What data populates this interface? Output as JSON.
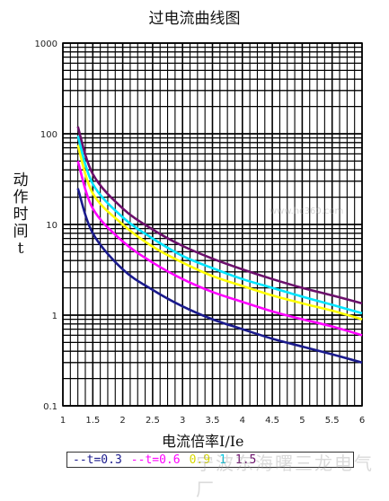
{
  "chart_data": {
    "type": "line",
    "title": "过电流曲线图",
    "xlabel": "电流倍率I/Ie",
    "ylabel": "动作时间t",
    "xlim": [
      1,
      6
    ],
    "ylim": [
      0.1,
      1000
    ],
    "yscale": "log",
    "grid": true,
    "legend": "bottom",
    "x_ticks": [
      "1",
      "1.5",
      "2",
      "2.5",
      "3",
      "3.5",
      "4",
      "4.5",
      "5",
      "5.5",
      "6"
    ],
    "y_ticks": [
      "1000",
      "100",
      "10",
      "1",
      "0.1"
    ],
    "series": [
      {
        "name": "t=0.3",
        "color": "#1a1a8c",
        "x": [
          1.25,
          1.5,
          2,
          2.5,
          3,
          3.5,
          4,
          4.5,
          5,
          5.5,
          6
        ],
        "y": [
          25,
          8,
          3.2,
          1.9,
          1.25,
          0.9,
          0.7,
          0.55,
          0.45,
          0.37,
          0.3
        ]
      },
      {
        "name": "t=0.6",
        "color": "#ff00ff",
        "x": [
          1.25,
          1.5,
          2,
          2.5,
          3,
          3.5,
          4,
          4.5,
          5,
          5.5,
          6
        ],
        "y": [
          50,
          15,
          6.5,
          3.8,
          2.5,
          1.8,
          1.4,
          1.1,
          0.9,
          0.75,
          0.6
        ]
      },
      {
        "name": "0.9",
        "color": "#ffff00",
        "x": [
          1.25,
          1.5,
          2,
          2.5,
          3,
          3.5,
          4,
          4.5,
          5,
          5.5,
          6
        ],
        "y": [
          75,
          22,
          10,
          5.7,
          3.8,
          2.7,
          2.1,
          1.65,
          1.35,
          1.12,
          0.9
        ]
      },
      {
        "name": "1",
        "color": "#00e5ff",
        "x": [
          1.25,
          1.5,
          2,
          2.5,
          3,
          3.5,
          4,
          4.5,
          5,
          5.5,
          6
        ],
        "y": [
          95,
          28,
          12,
          7,
          4.5,
          3.3,
          2.5,
          2.0,
          1.6,
          1.3,
          1.05
        ]
      },
      {
        "name": "1.5",
        "color": "#6b0f6b",
        "x": [
          1.25,
          1.5,
          2,
          2.5,
          3,
          3.5,
          4,
          4.5,
          5,
          5.5,
          6
        ],
        "y": [
          120,
          36,
          15,
          8.8,
          5.8,
          4.2,
          3.2,
          2.5,
          2.0,
          1.65,
          1.35
        ]
      }
    ]
  },
  "legend": {
    "items": [
      {
        "label": "--t=0.3",
        "color": "#1a1a8c"
      },
      {
        "label": "--t=0.6",
        "color": "#ff00ff"
      },
      {
        "label": "0.9",
        "color": "#d8d800"
      },
      {
        "label": "1",
        "color": "#00c8e0"
      },
      {
        "label": "1.5",
        "color": "#6b0f6b"
      }
    ]
  },
  "watermark": {
    "text": "宁波东海曙三龙电气厂",
    "url": "www.hc360.com"
  }
}
